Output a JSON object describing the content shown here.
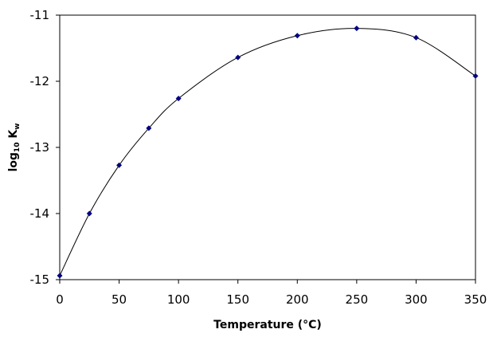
{
  "chart_data": {
    "type": "scatter",
    "title": "",
    "xlabel": "Temperature (°C)",
    "ylabel_main": "log",
    "ylabel_sub1": "10",
    "ylabel_k": " K",
    "ylabel_sub2": "w",
    "xlim": [
      0,
      350
    ],
    "ylim": [
      -15,
      -11
    ],
    "xticks": [
      0,
      50,
      100,
      150,
      200,
      250,
      300,
      350
    ],
    "yticks": [
      -15,
      -14,
      -13,
      -12,
      -11
    ],
    "grid": false,
    "trendline": "smooth",
    "marker_color": "#000080",
    "line_color": "#000000",
    "series": [
      {
        "x": [
          0,
          25,
          50,
          75,
          100,
          150,
          200,
          250,
          300,
          350
        ],
        "y": [
          -14.94,
          -14.0,
          -13.27,
          -12.71,
          -12.26,
          -11.64,
          -11.31,
          -11.2,
          -11.34,
          -11.92
        ]
      }
    ]
  }
}
